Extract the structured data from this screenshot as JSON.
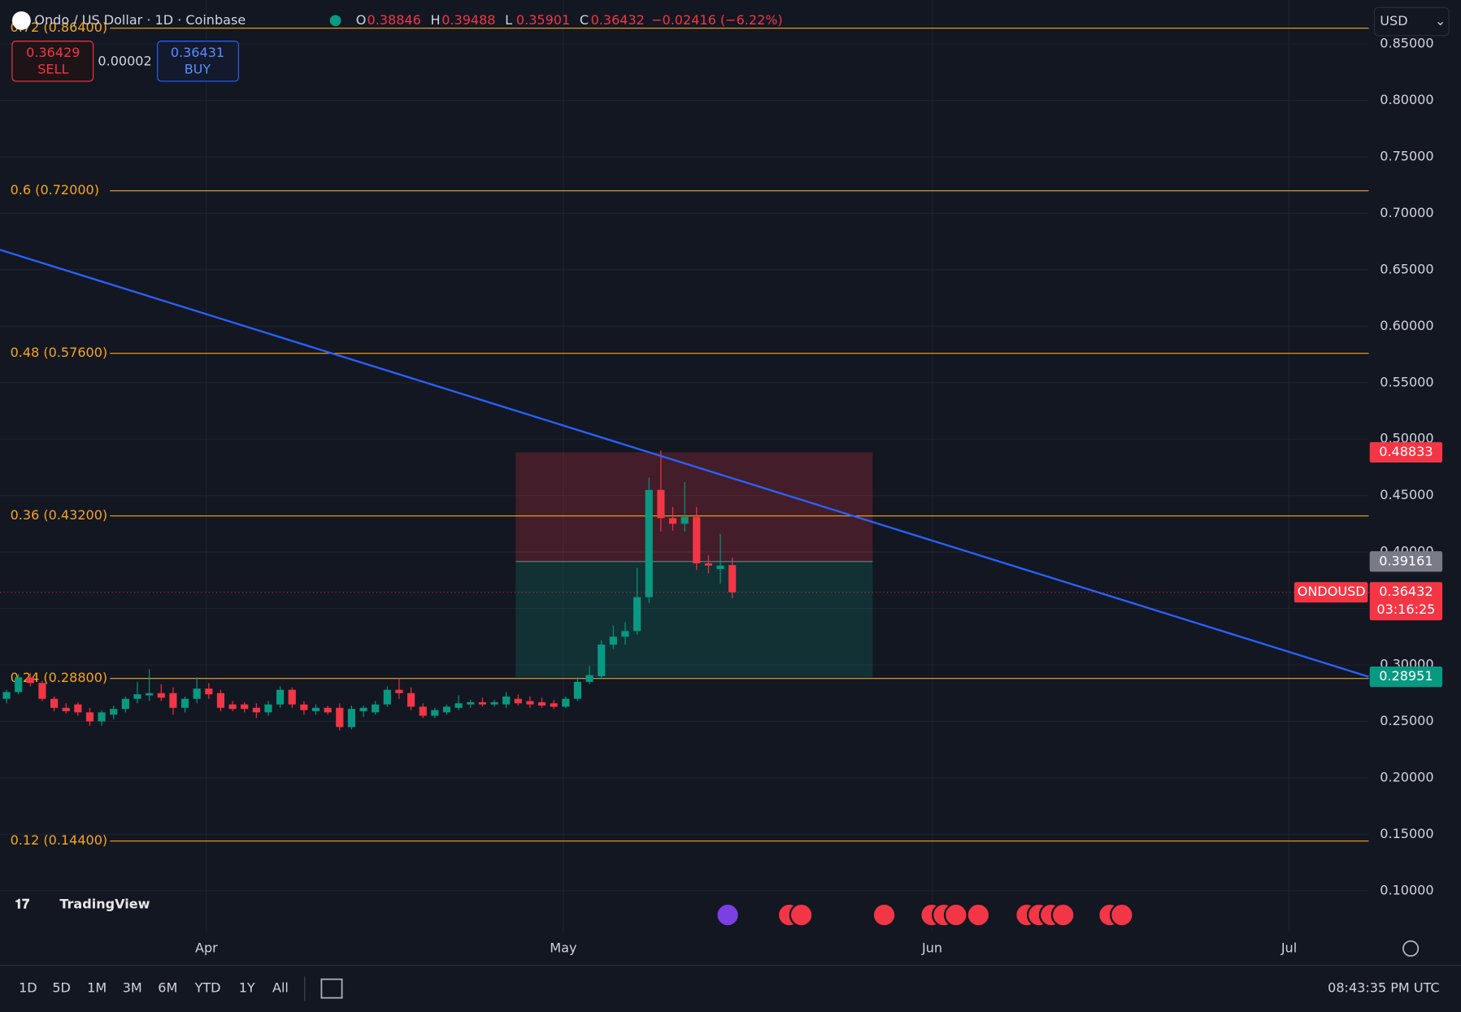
{
  "chart_data": {
    "type": "candlestick",
    "title": "Ondo / US Dollar · 1D · Coinbase",
    "ohlc": [
      {
        "label": "O",
        "value": 0.38846
      },
      {
        "label": "H",
        "value": 0.39488
      },
      {
        "label": "L",
        "value": 0.35901
      },
      {
        "label": "C",
        "value": 0.36432
      }
    ],
    "change": "−0.02416 (−6.22%)",
    "sell": {
      "price": 0.36429,
      "label": "SELL"
    },
    "spread": 2e-05,
    "buy": {
      "price": 0.36431,
      "label": "BUY"
    },
    "currency": "USD",
    "up_color": "#089981",
    "down_color": "#f23645",
    "candles": [
      [
        0.27,
        0.278,
        0.266,
        0.276
      ],
      [
        0.276,
        0.292,
        0.274,
        0.289
      ],
      [
        0.289,
        0.293,
        0.281,
        0.284
      ],
      [
        0.284,
        0.286,
        0.268,
        0.27
      ],
      [
        0.27,
        0.272,
        0.259,
        0.262
      ],
      [
        0.262,
        0.266,
        0.257,
        0.259
      ],
      [
        0.265,
        0.267,
        0.255,
        0.258
      ],
      [
        0.258,
        0.262,
        0.246,
        0.25
      ],
      [
        0.25,
        0.26,
        0.246,
        0.258
      ],
      [
        0.256,
        0.264,
        0.252,
        0.261
      ],
      [
        0.261,
        0.272,
        0.258,
        0.27
      ],
      [
        0.27,
        0.285,
        0.266,
        0.274
      ],
      [
        0.273,
        0.296,
        0.268,
        0.275
      ],
      [
        0.275,
        0.283,
        0.268,
        0.271
      ],
      [
        0.275,
        0.28,
        0.256,
        0.262
      ],
      [
        0.262,
        0.272,
        0.258,
        0.27
      ],
      [
        0.27,
        0.289,
        0.266,
        0.279
      ],
      [
        0.279,
        0.284,
        0.27,
        0.274
      ],
      [
        0.275,
        0.278,
        0.259,
        0.262
      ],
      [
        0.265,
        0.268,
        0.259,
        0.261
      ],
      [
        0.265,
        0.267,
        0.258,
        0.261
      ],
      [
        0.262,
        0.266,
        0.253,
        0.258
      ],
      [
        0.258,
        0.268,
        0.255,
        0.265
      ],
      [
        0.265,
        0.281,
        0.262,
        0.278
      ],
      [
        0.278,
        0.28,
        0.262,
        0.265
      ],
      [
        0.265,
        0.268,
        0.256,
        0.26
      ],
      [
        0.259,
        0.265,
        0.256,
        0.262
      ],
      [
        0.262,
        0.264,
        0.256,
        0.258
      ],
      [
        0.262,
        0.266,
        0.242,
        0.245
      ],
      [
        0.245,
        0.264,
        0.243,
        0.261
      ],
      [
        0.259,
        0.264,
        0.254,
        0.262
      ],
      [
        0.258,
        0.268,
        0.256,
        0.265
      ],
      [
        0.265,
        0.281,
        0.263,
        0.278
      ],
      [
        0.278,
        0.288,
        0.27,
        0.275
      ],
      [
        0.275,
        0.28,
        0.26,
        0.263
      ],
      [
        0.263,
        0.266,
        0.253,
        0.255
      ],
      [
        0.255,
        0.262,
        0.253,
        0.26
      ],
      [
        0.258,
        0.265,
        0.256,
        0.263
      ],
      [
        0.262,
        0.273,
        0.26,
        0.266
      ],
      [
        0.265,
        0.269,
        0.262,
        0.267
      ],
      [
        0.267,
        0.271,
        0.263,
        0.265
      ],
      [
        0.265,
        0.269,
        0.263,
        0.267
      ],
      [
        0.265,
        0.276,
        0.262,
        0.272
      ],
      [
        0.27,
        0.274,
        0.264,
        0.266
      ],
      [
        0.268,
        0.272,
        0.262,
        0.265
      ],
      [
        0.267,
        0.271,
        0.262,
        0.264
      ],
      [
        0.266,
        0.269,
        0.261,
        0.263
      ],
      [
        0.263,
        0.272,
        0.262,
        0.27
      ],
      [
        0.27,
        0.289,
        0.268,
        0.285
      ],
      [
        0.285,
        0.299,
        0.283,
        0.291
      ],
      [
        0.29,
        0.322,
        0.288,
        0.318
      ],
      [
        0.318,
        0.335,
        0.314,
        0.325
      ],
      [
        0.325,
        0.338,
        0.318,
        0.33
      ],
      [
        0.33,
        0.386,
        0.327,
        0.36
      ],
      [
        0.36,
        0.466,
        0.355,
        0.455
      ],
      [
        0.455,
        0.49,
        0.418,
        0.43
      ],
      [
        0.43,
        0.44,
        0.419,
        0.425
      ],
      [
        0.425,
        0.462,
        0.418,
        0.431
      ],
      [
        0.431,
        0.44,
        0.384,
        0.39
      ],
      [
        0.39,
        0.397,
        0.381,
        0.388
      ],
      [
        0.385,
        0.416,
        0.372,
        0.388
      ],
      [
        0.38846,
        0.39488,
        0.35901,
        0.36432
      ]
    ],
    "xlim": [
      -0.55,
      114.5
    ],
    "xticks": [
      {
        "value": 16.8,
        "label": "Apr"
      },
      {
        "value": 46.8,
        "label": "May"
      },
      {
        "value": 77.8,
        "label": "Jun"
      },
      {
        "value": 107.8,
        "label": "Jul"
      }
    ],
    "ylim": [
      0.0637,
      0.8888
    ],
    "yticks": [
      {
        "value": 0.85,
        "label": "0.85000"
      },
      {
        "value": 0.8,
        "label": "0.80000"
      },
      {
        "value": 0.75,
        "label": "0.75000"
      },
      {
        "value": 0.7,
        "label": "0.70000"
      },
      {
        "value": 0.65,
        "label": "0.65000"
      },
      {
        "value": 0.6,
        "label": "0.60000"
      },
      {
        "value": 0.55,
        "label": "0.55000"
      },
      {
        "value": 0.5,
        "label": "0.50000"
      },
      {
        "value": 0.45,
        "label": "0.45000"
      },
      {
        "value": 0.4,
        "label": "0.40000"
      },
      {
        "value": 0.35,
        "label": "0.35000"
      },
      {
        "value": 0.3,
        "label": "0.30000"
      },
      {
        "value": 0.25,
        "label": "0.25000"
      },
      {
        "value": 0.2,
        "label": "0.20000"
      },
      {
        "value": 0.15,
        "label": "0.15000"
      },
      {
        "value": 0.1,
        "label": "0.10000"
      }
    ],
    "grid": true,
    "levels": {
      "color": "#f5a623",
      "items": [
        {
          "label": "0.72 (0.86400)",
          "value": 0.864
        },
        {
          "label": "0.6 (0.72000)",
          "value": 0.72
        },
        {
          "label": "0.48 (0.57600)",
          "value": 0.576
        },
        {
          "label": "0.36 (0.43200)",
          "value": 0.432
        },
        {
          "label": "0.24 (0.28800)",
          "value": 0.288
        },
        {
          "label": "0.12 (0.14400)",
          "value": 0.144
        }
      ]
    },
    "trendline": {
      "color": "#2962ff",
      "x": [
        -0.55,
        114.5
      ],
      "values": [
        0.6677,
        0.28951
      ]
    },
    "position": {
      "x": [
        42.8,
        72.8
      ],
      "stop": 0.48833,
      "entry": 0.39161,
      "target": 0.289
    },
    "last_price": {
      "symbol": "ONDOUSD",
      "value": 0.36432,
      "countdown": "03:16:25"
    },
    "brand": "TradingView",
    "ranges": [
      "1D",
      "5D",
      "1M",
      "3M",
      "6M",
      "YTD",
      "1Y",
      "All"
    ],
    "clock": "08:43:35 PM UTC"
  }
}
